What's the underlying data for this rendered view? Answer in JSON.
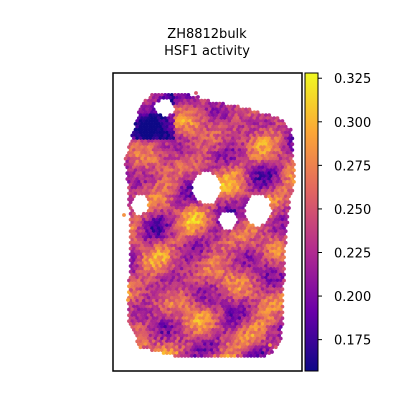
{
  "chart_data": {
    "type": "heatmap",
    "title_lines": [
      "ZH8812bulk",
      "HSF1 activity"
    ],
    "xlabel": "",
    "ylabel": "",
    "colormap": "plasma",
    "colorbar": {
      "min": 0.157,
      "max": 0.328,
      "ticks": [
        0.175,
        0.2,
        0.225,
        0.25,
        0.275,
        0.3,
        0.325
      ],
      "tick_labels": [
        "0.175",
        "0.200",
        "0.225",
        "0.250",
        "0.275",
        "0.300",
        "0.325"
      ],
      "colors": [
        "#0d0887",
        "#6a00a8",
        "#b12a90",
        "#e16462",
        "#fca636",
        "#f0f921"
      ]
    },
    "axes": {
      "xticks": [],
      "yticks": [],
      "frame": true
    }
  }
}
